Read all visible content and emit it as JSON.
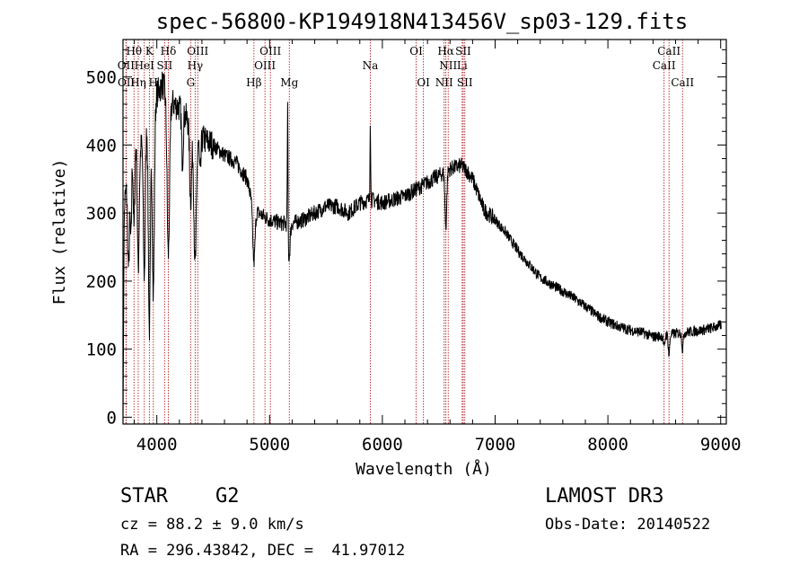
{
  "chart_data": {
    "type": "line",
    "title": "spec-56800-KP194918N413456V_sp03-129.fits",
    "xlabel": "Wavelength (Å)",
    "ylabel": "Flux (relative)",
    "xlim": [
      3700,
      9050
    ],
    "ylim": [
      -10,
      555
    ],
    "xticks": [
      4000,
      5000,
      6000,
      7000,
      8000,
      9000
    ],
    "yticks": [
      0,
      100,
      200,
      300,
      400,
      500
    ],
    "grid": false,
    "continuum": [
      [
        3700,
        300
      ],
      [
        3760,
        370
      ],
      [
        3800,
        420
      ],
      [
        3850,
        390
      ],
      [
        3900,
        440
      ],
      [
        3950,
        450
      ],
      [
        4000,
        475
      ],
      [
        4050,
        490
      ],
      [
        4100,
        470
      ],
      [
        4150,
        460
      ],
      [
        4200,
        455
      ],
      [
        4300,
        430
      ],
      [
        4400,
        410
      ],
      [
        4500,
        400
      ],
      [
        4600,
        385
      ],
      [
        4700,
        375
      ],
      [
        4800,
        350
      ],
      [
        4850,
        310
      ],
      [
        4900,
        300
      ],
      [
        5000,
        290
      ],
      [
        5100,
        285
      ],
      [
        5200,
        285
      ],
      [
        5300,
        290
      ],
      [
        5400,
        300
      ],
      [
        5500,
        310
      ],
      [
        5600,
        310
      ],
      [
        5700,
        300
      ],
      [
        5800,
        315
      ],
      [
        5900,
        320
      ],
      [
        6000,
        315
      ],
      [
        6100,
        320
      ],
      [
        6200,
        325
      ],
      [
        6300,
        335
      ],
      [
        6400,
        345
      ],
      [
        6500,
        355
      ],
      [
        6600,
        365
      ],
      [
        6700,
        370
      ],
      [
        6750,
        362
      ],
      [
        6800,
        350
      ],
      [
        6850,
        328
      ],
      [
        6900,
        305
      ],
      [
        7000,
        290
      ],
      [
        7100,
        270
      ],
      [
        7200,
        245
      ],
      [
        7300,
        225
      ],
      [
        7400,
        205
      ],
      [
        7500,
        195
      ],
      [
        7600,
        185
      ],
      [
        7700,
        175
      ],
      [
        7800,
        163
      ],
      [
        7900,
        150
      ],
      [
        8000,
        140
      ],
      [
        8100,
        133
      ],
      [
        8200,
        128
      ],
      [
        8300,
        125
      ],
      [
        8400,
        118
      ],
      [
        8500,
        120
      ],
      [
        8600,
        123
      ],
      [
        8700,
        125
      ],
      [
        8800,
        127
      ],
      [
        8900,
        130
      ],
      [
        9000,
        135
      ]
    ],
    "features": [
      {
        "w": 3700,
        "depth": 300,
        "width": 5
      },
      {
        "w": 3750,
        "depth": 140,
        "width": 8
      },
      {
        "w": 3771,
        "depth": 120,
        "width": 6
      },
      {
        "w": 3798,
        "depth": 140,
        "width": 7
      },
      {
        "w": 3835,
        "depth": 180,
        "width": 8
      },
      {
        "w": 3889,
        "depth": 220,
        "width": 9
      },
      {
        "w": 3934,
        "depth": 320,
        "width": 9
      },
      {
        "w": 3969,
        "depth": 280,
        "width": 9
      },
      {
        "w": 4102,
        "depth": 230,
        "width": 11
      },
      {
        "w": 4227,
        "depth": 70,
        "width": 7
      },
      {
        "w": 4300,
        "depth": 110,
        "width": 9
      },
      {
        "w": 4340,
        "depth": 200,
        "width": 11
      },
      {
        "w": 4384,
        "depth": 60,
        "width": 7
      },
      {
        "w": 4861,
        "depth": 80,
        "width": 10
      },
      {
        "w": 5173,
        "depth": 50,
        "width": 9
      },
      {
        "w": 6563,
        "depth": 80,
        "width": 8
      },
      {
        "w": 8498,
        "depth": 20,
        "width": 6
      },
      {
        "w": 8542,
        "depth": 30,
        "width": 6
      },
      {
        "w": 8662,
        "depth": 25,
        "width": 6
      }
    ],
    "emission": [
      {
        "w": 5160,
        "height": 190,
        "width": 3
      },
      {
        "w": 5893,
        "height": 120,
        "width": 3
      }
    ],
    "spectral_lines": [
      {
        "label": "Hθ",
        "w": 3798,
        "row": 1
      },
      {
        "label": "OII",
        "w": 3727,
        "row": 2
      },
      {
        "label": "OII",
        "w": 3729,
        "row": 3
      },
      {
        "label": "HeI",
        "w": 3889,
        "row": 2
      },
      {
        "label": "Hη",
        "w": 3835,
        "row": 3
      },
      {
        "label": "K",
        "w": 3934,
        "row": 1
      },
      {
        "label": "H",
        "w": 3969,
        "row": 3
      },
      {
        "label": "Hδ",
        "w": 4102,
        "row": 1
      },
      {
        "label": "SII",
        "w": 4069,
        "row": 2
      },
      {
        "label": "OIII",
        "w": 4363,
        "row": 1
      },
      {
        "label": "Hγ",
        "w": 4340,
        "row": 2
      },
      {
        "label": "G",
        "w": 4300,
        "row": 3
      },
      {
        "label": "Hβ",
        "w": 4861,
        "row": 3
      },
      {
        "label": "OIII",
        "w": 5007,
        "row": 1
      },
      {
        "label": "OIII",
        "w": 4959,
        "row": 2
      },
      {
        "label": "Mg",
        "w": 5175,
        "row": 3
      },
      {
        "label": "Na",
        "w": 5893,
        "row": 2
      },
      {
        "label": "OI",
        "w": 6300,
        "row": 1
      },
      {
        "label": "OI",
        "w": 6364,
        "row": 3
      },
      {
        "label": "Hα",
        "w": 6563,
        "row": 1
      },
      {
        "label": "NII",
        "w": 6584,
        "row": 2
      },
      {
        "label": "NII",
        "w": 6548,
        "row": 3
      },
      {
        "label": "SII",
        "w": 6717,
        "row": 1
      },
      {
        "label": "Li",
        "w": 6708,
        "row": 2
      },
      {
        "label": "SII",
        "w": 6731,
        "row": 3
      },
      {
        "label": "CaII",
        "w": 8542,
        "row": 1
      },
      {
        "label": "CaII",
        "w": 8498,
        "row": 2
      },
      {
        "label": "CaII",
        "w": 8662,
        "row": 3
      }
    ],
    "line_color": "#000000",
    "marker_color": "#b22222"
  },
  "info": {
    "object_class": "STAR",
    "subclass": "G2",
    "redshift": "cz = 88.2 ± 9.0 km/s",
    "coords": "RA = 296.43842, DEC =  41.97012",
    "survey": "LAMOST DR3",
    "obs_date": "Obs-Date: 20140522"
  }
}
